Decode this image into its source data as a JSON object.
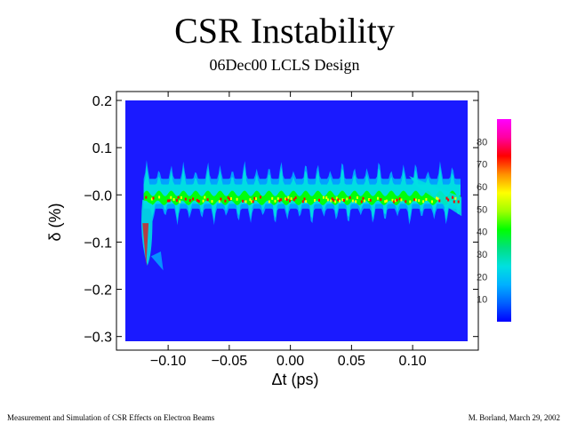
{
  "chart_data": {
    "type": "heatmap",
    "title": "CSR Instability",
    "subtitle": "06Dec00 LCLS Design",
    "xlabel": "Δt (ps)",
    "ylabel": "δ (%)",
    "xlim": [
      -0.135,
      0.145
    ],
    "ylim": [
      -0.31,
      0.2
    ],
    "x_ticks": [
      "-0.10",
      "-0.05",
      "0.00",
      "0.05",
      "0.10"
    ],
    "x_tick_values": [
      -0.1,
      -0.05,
      0.0,
      0.05,
      0.1
    ],
    "y_ticks": [
      "0.2",
      "0.1",
      "-0.0",
      "-0.1",
      "-0.2",
      "-0.3"
    ],
    "y_tick_values": [
      0.2,
      0.1,
      0.0,
      -0.1,
      -0.2,
      -0.3
    ],
    "colorbar_ticks": [
      "80",
      "70",
      "60",
      "50",
      "40",
      "30",
      "20",
      "10"
    ],
    "colorbar_tick_values": [
      80,
      70,
      60,
      50,
      40,
      30,
      20,
      10
    ],
    "colorbar_range": [
      0,
      90
    ],
    "background_color": "#1a1aff",
    "colormap": [
      "#0000ff",
      "#0060ff",
      "#00b0ff",
      "#00e0e0",
      "#00e080",
      "#00ff00",
      "#a0ff00",
      "#ffff00",
      "#ff9000",
      "#ff0000",
      "#ff00a0",
      "#ff00ff"
    ],
    "beam_core": {
      "x_range": [
        -0.12,
        0.14
      ],
      "mean_delta": -0.005,
      "oscillation_spacing_ps": 0.01,
      "peak_density": 70
    }
  },
  "footer": {
    "left": "Measurement and Simulation of CSR Effects on Electron Beams",
    "right": "M. Borland, March 29, 2002"
  }
}
